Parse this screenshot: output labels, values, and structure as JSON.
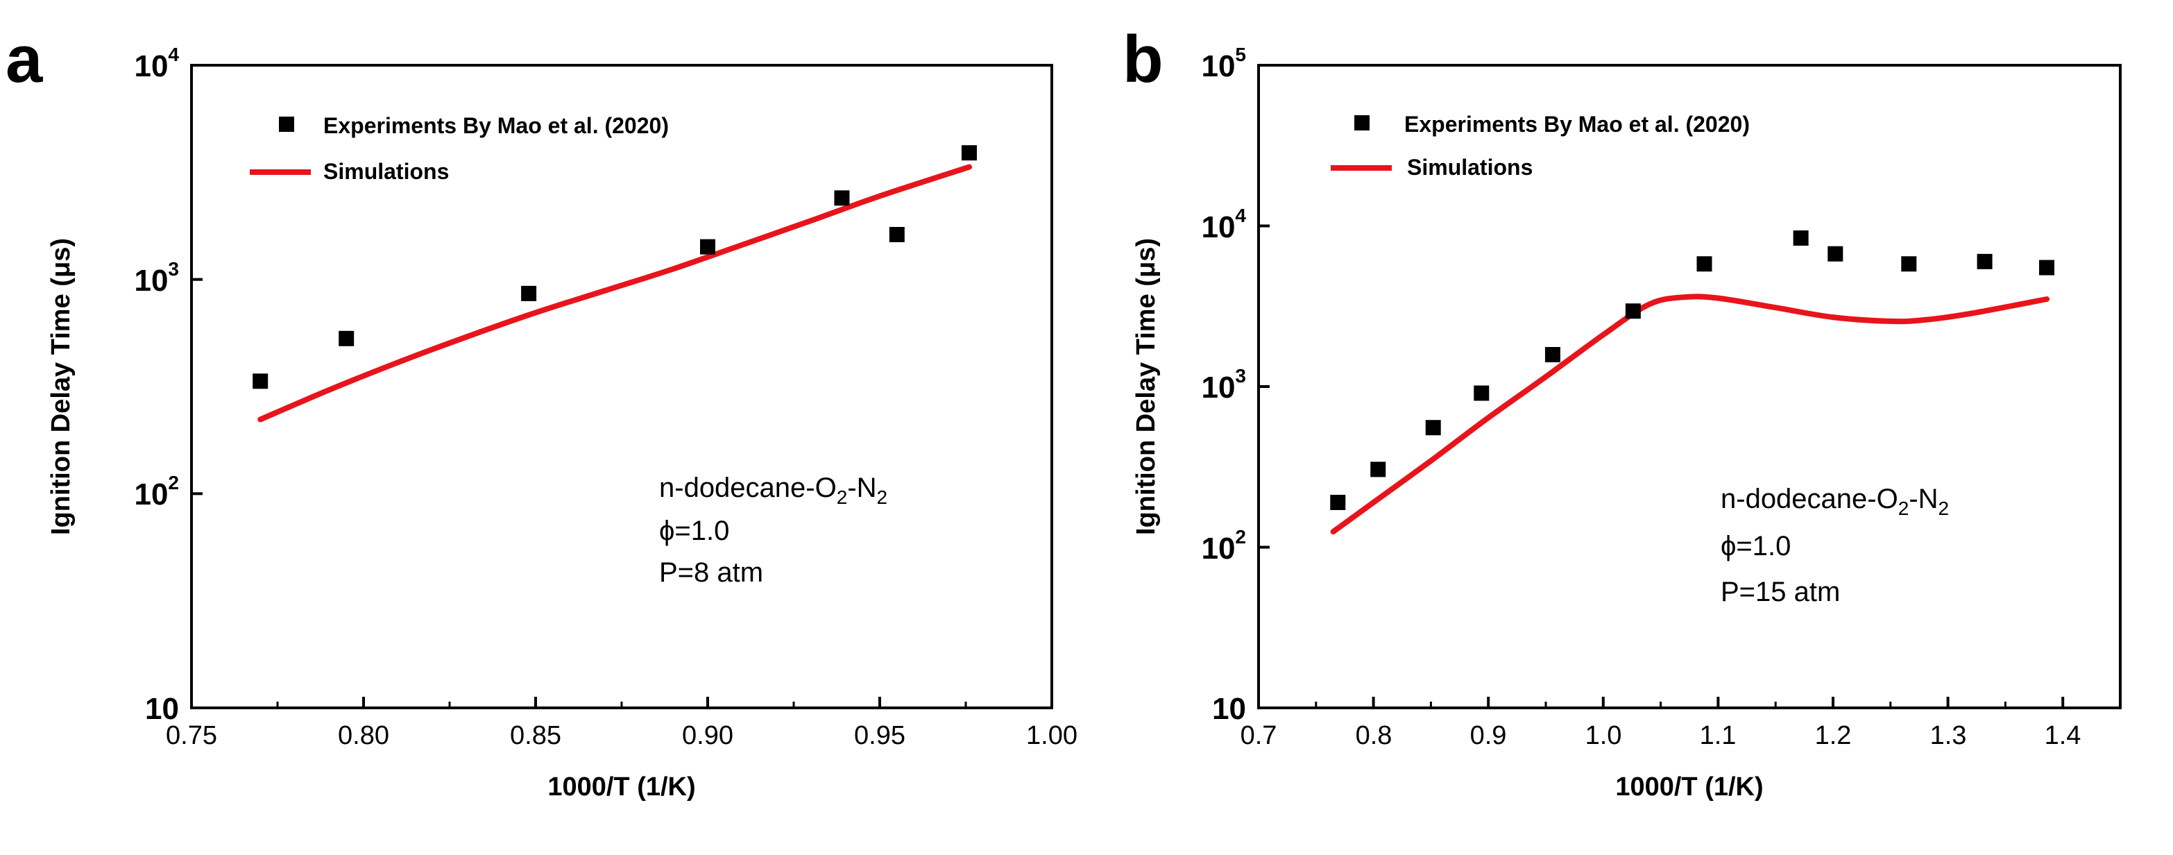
{
  "chart_data": [
    {
      "panel": "a",
      "type": "scatter",
      "title": "",
      "xlabel": "1000/T (1/K)",
      "ylabel": "Ignition Delay Time (μs)",
      "xlim": [
        0.75,
        1.0
      ],
      "ylim": [
        10,
        10000
      ],
      "yscale": "log",
      "x_ticks": [
        0.75,
        0.8,
        0.85,
        0.9,
        0.95,
        1.0
      ],
      "x_tick_labels": [
        "0.75",
        "0.80",
        "0.85",
        "0.90",
        "0.95",
        "1.00"
      ],
      "y_ticks": [
        10,
        100,
        1000,
        10000
      ],
      "y_tick_labels": [
        "10",
        "10",
        "10",
        "10"
      ],
      "y_tick_exponents": [
        "",
        "2",
        "3",
        "4"
      ],
      "legend_position": "top-left",
      "series": [
        {
          "name": "Experiments By Mao et al. (2020)",
          "kind": "markers",
          "color": "#000000",
          "x": [
            0.77,
            0.795,
            0.848,
            0.9,
            0.939,
            0.955,
            0.976
          ],
          "y": [
            335,
            530,
            860,
            1420,
            2400,
            1620,
            3900
          ]
        },
        {
          "name": "Simulations",
          "kind": "line",
          "color": "#e8141b",
          "x": [
            0.77,
            0.79,
            0.81,
            0.83,
            0.85,
            0.87,
            0.89,
            0.91,
            0.93,
            0.95,
            0.976
          ],
          "y": [
            222,
            305,
            410,
            540,
            700,
            885,
            1120,
            1450,
            1880,
            2450,
            3350
          ]
        }
      ],
      "annotation": {
        "line1_a": "n-dodecane-O",
        "line1_sub1": "2",
        "line1_b": "-N",
        "line1_sub2": "2",
        "line2": "ϕ=1.0",
        "line3": "P=8 atm"
      }
    },
    {
      "panel": "b",
      "type": "scatter",
      "title": "",
      "xlabel": "1000/T (1/K)",
      "ylabel": "Ignition Delay Time (μs)",
      "xlim": [
        0.7,
        1.45
      ],
      "ylim": [
        10,
        100000
      ],
      "yscale": "log",
      "x_ticks": [
        0.7,
        0.8,
        0.9,
        1.0,
        1.1,
        1.2,
        1.3,
        1.4
      ],
      "x_tick_labels": [
        "0.7",
        "0.8",
        "0.9",
        "1.0",
        "1.1",
        "1.2",
        "1.3",
        "1.4"
      ],
      "y_ticks": [
        10,
        100,
        1000,
        10000,
        100000
      ],
      "y_tick_labels": [
        "10",
        "10",
        "10",
        "10",
        "10"
      ],
      "y_tick_exponents": [
        "",
        "2",
        "3",
        "4",
        "5"
      ],
      "legend_position": "top-left",
      "series": [
        {
          "name": "Experiments By Mao et al. (2020)",
          "kind": "markers",
          "color": "#000000",
          "x": [
            0.769,
            0.804,
            0.852,
            0.894,
            0.956,
            1.026,
            1.088,
            1.172,
            1.202,
            1.266,
            1.332,
            1.386
          ],
          "y": [
            190,
            305,
            555,
            910,
            1580,
            2950,
            5800,
            8400,
            6700,
            5800,
            6000,
            5500
          ]
        },
        {
          "name": "Simulations",
          "kind": "line",
          "color": "#e8141b",
          "x": [
            0.765,
            0.8,
            0.85,
            0.9,
            0.95,
            1.0,
            1.04,
            1.07,
            1.1,
            1.15,
            1.2,
            1.25,
            1.28,
            1.32,
            1.386
          ],
          "y": [
            125,
            190,
            345,
            640,
            1150,
            2100,
            3250,
            3600,
            3550,
            3100,
            2700,
            2550,
            2600,
            2850,
            3500
          ]
        }
      ],
      "annotation": {
        "line1_a": "n-dodecane-O",
        "line1_sub1": "2",
        "line1_b": "-N",
        "line1_sub2": "2",
        "line2": "ϕ=1.0",
        "line3": "P=15 atm"
      }
    }
  ]
}
